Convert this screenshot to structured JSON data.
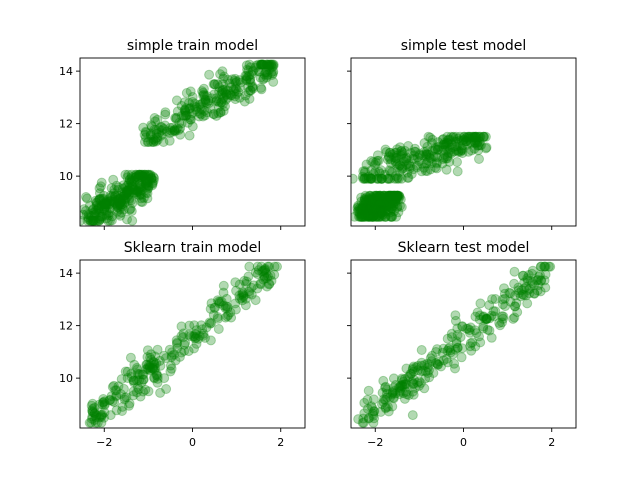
{
  "chart_data": [
    {
      "type": "scatter",
      "title": "simple train model",
      "xlim": [
        -2.55,
        2.55
      ],
      "ylim": [
        8.1,
        14.5
      ],
      "xticks": [
        -2,
        0,
        2
      ],
      "yticks": [
        10,
        12,
        14
      ],
      "show_xticklabels": false,
      "show_yticklabels": true,
      "color": "#008000",
      "alpha": 0.3,
      "clusters": [
        {
          "x_range": [
            -2.35,
            -0.95
          ],
          "y_range": [
            8.4,
            10.0
          ],
          "slope": 0.85
        },
        {
          "x_range": [
            -1.1,
            1.85
          ],
          "y_range": [
            11.4,
            14.2
          ],
          "slope": 0.9
        }
      ]
    },
    {
      "type": "scatter",
      "title": "simple test model",
      "xlim": [
        -2.55,
        2.55
      ],
      "ylim": [
        8.1,
        14.5
      ],
      "xticks": [
        -2,
        0,
        2
      ],
      "yticks": [
        10,
        12,
        14
      ],
      "show_xticklabels": false,
      "show_yticklabels": false,
      "color": "#008000",
      "alpha": 0.3,
      "clusters": [
        {
          "x_range": [
            -2.35,
            -1.5
          ],
          "y_range": [
            8.55,
            9.2
          ],
          "slope": 0.4
        },
        {
          "x_range": [
            -2.25,
            0.45
          ],
          "y_range": [
            10.0,
            11.45
          ],
          "slope": 0.5
        }
      ]
    },
    {
      "type": "scatter",
      "title": "Sklearn train model",
      "xlim": [
        -2.55,
        2.55
      ],
      "ylim": [
        8.1,
        14.5
      ],
      "xticks": [
        -2,
        0,
        2
      ],
      "yticks": [
        10,
        12,
        14
      ],
      "show_xticklabels": true,
      "show_yticklabels": true,
      "color": "#008000",
      "alpha": 0.3,
      "clusters": [
        {
          "x_range": [
            -2.35,
            1.85
          ],
          "y_range": [
            8.4,
            14.2
          ],
          "slope": 1.45
        }
      ]
    },
    {
      "type": "scatter",
      "title": "Sklearn test model",
      "xlim": [
        -2.55,
        2.55
      ],
      "ylim": [
        8.1,
        14.5
      ],
      "xticks": [
        -2,
        0,
        2
      ],
      "yticks": [
        10,
        12,
        14
      ],
      "show_xticklabels": true,
      "show_yticklabels": false,
      "color": "#008000",
      "alpha": 0.3,
      "clusters": [
        {
          "x_range": [
            -2.35,
            2.0
          ],
          "y_range": [
            8.4,
            14.2
          ],
          "slope": 1.45
        }
      ]
    }
  ]
}
